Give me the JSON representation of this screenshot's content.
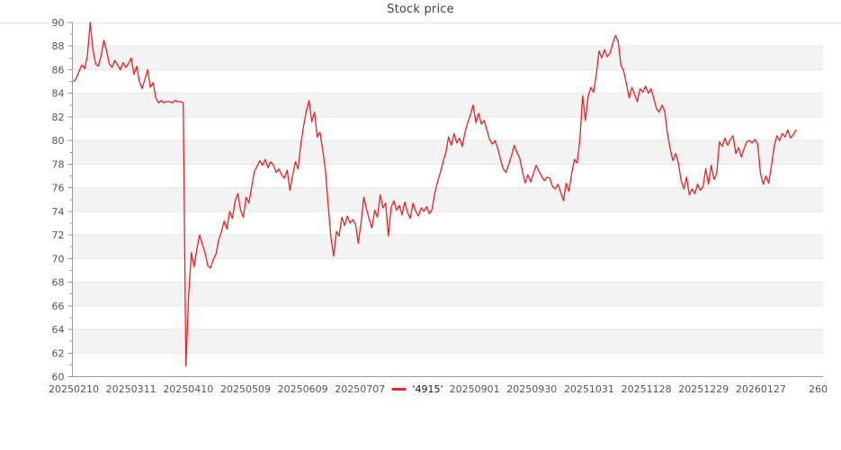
{
  "title": "Stock price",
  "legend": {
    "label": "'4915'",
    "slot_index": 6,
    "color": "#ed2024"
  },
  "colors": {
    "line": "#ed2024",
    "band_gray": "#f3f3f3",
    "band_edge": "#e7e7e7",
    "axis": "#999999",
    "tick_label": "#565656",
    "title_text": "#424242",
    "top_rule": "#e5e5e5",
    "background": "#ffffff"
  },
  "chart_data": {
    "type": "line",
    "title": "Stock price",
    "xlabel": "",
    "ylabel": "",
    "ylim": [
      60,
      90
    ],
    "y_tick_step": 2,
    "y_minor_tick_step": 1,
    "y_tick_labels": [
      "60",
      "62",
      "64",
      "66",
      "68",
      "70",
      "72",
      "74",
      "76",
      "78",
      "80",
      "82",
      "84",
      "86",
      "88",
      "90"
    ],
    "x_ticks": [
      "20250210",
      "20250311",
      "20250410",
      "20250509",
      "20250609",
      "20250707",
      "20250901",
      "20250930",
      "20251031",
      "20251128",
      "20251229",
      "20260127",
      "260"
    ],
    "grid": "alternating horizontal gray bands every 2 units (62-64, 66-68, 70-72, 74-76, 78-80, 82-84, 86-88)",
    "legend_position": "bottom-center, inline with x tick labels",
    "series": [
      {
        "name": "'4915'",
        "color": "#ed2024",
        "values": [
          85.0,
          85.3,
          85.9,
          86.4,
          86.1,
          87.2,
          90.0,
          87.7,
          86.5,
          86.3,
          87.2,
          88.5,
          87.6,
          86.5,
          86.2,
          86.8,
          86.4,
          86.0,
          86.6,
          86.2,
          86.5,
          87.0,
          85.6,
          86.3,
          85.0,
          84.4,
          85.2,
          86.0,
          84.5,
          84.9,
          83.6,
          83.2,
          83.4,
          83.2,
          83.3,
          83.3,
          83.2,
          83.4,
          83.3,
          83.3,
          83.2,
          60.9,
          67.0,
          70.5,
          69.3,
          70.8,
          72.0,
          71.2,
          70.5,
          69.4,
          69.2,
          69.9,
          70.4,
          71.6,
          72.3,
          73.2,
          72.5,
          74.0,
          73.4,
          74.9,
          75.5,
          74.1,
          73.5,
          75.2,
          74.7,
          76.0,
          77.4,
          77.8,
          78.3,
          77.9,
          78.4,
          77.7,
          78.2,
          77.9,
          77.3,
          77.6,
          77.1,
          76.8,
          77.5,
          75.8,
          77.0,
          78.2,
          77.6,
          79.7,
          81.2,
          82.5,
          83.4,
          81.6,
          82.4,
          80.3,
          80.7,
          79.2,
          77.5,
          74.5,
          71.8,
          70.2,
          72.3,
          71.9,
          73.5,
          72.8,
          73.6,
          73.0,
          73.3,
          72.9,
          71.3,
          73.0,
          75.2,
          74.2,
          73.3,
          72.6,
          74.1,
          73.5,
          75.4,
          74.3,
          74.7,
          71.9,
          74.3,
          74.9,
          74.1,
          74.5,
          73.7,
          74.8,
          73.9,
          73.4,
          74.7,
          74.0,
          73.6,
          74.3,
          74.0,
          74.4,
          73.8,
          74.2,
          75.6,
          76.5,
          77.3,
          78.2,
          79.0,
          80.3,
          79.6,
          80.6,
          79.8,
          80.2,
          79.5,
          80.7,
          81.5,
          82.2,
          83.0,
          81.5,
          82.3,
          81.4,
          81.7,
          80.9,
          80.1,
          79.7,
          80.0,
          79.3,
          78.4,
          77.6,
          77.3,
          78.0,
          78.7,
          79.6,
          79.0,
          78.5,
          77.4,
          76.4,
          77.1,
          76.5,
          77.2,
          77.9,
          77.4,
          77.0,
          76.6,
          76.9,
          76.8,
          76.1,
          75.9,
          76.3,
          75.6,
          74.9,
          76.4,
          75.7,
          77.2,
          78.4,
          78.1,
          80.1,
          83.8,
          81.7,
          83.7,
          84.5,
          84.1,
          85.6,
          87.6,
          87.0,
          87.7,
          87.1,
          87.4,
          88.2,
          88.9,
          88.4,
          86.4,
          85.9,
          84.8,
          83.6,
          84.5,
          83.9,
          83.3,
          84.4,
          84.1,
          84.6,
          84.0,
          84.4,
          83.6,
          82.7,
          82.4,
          83.0,
          82.5,
          80.6,
          79.3,
          78.3,
          78.9,
          78.1,
          76.6,
          75.9,
          76.9,
          75.4,
          75.9,
          75.5,
          76.3,
          75.8,
          76.1,
          77.6,
          76.3,
          77.9,
          76.7,
          77.2,
          79.9,
          79.5,
          80.2,
          79.6,
          80.1,
          80.4,
          78.9,
          79.4,
          78.6,
          79.3,
          79.9,
          80.0,
          79.8,
          80.1,
          79.7,
          77.2,
          76.3,
          77.0,
          76.4,
          77.8,
          79.5,
          80.4,
          80.0,
          80.6,
          80.3,
          80.9,
          80.2,
          80.5,
          80.9
        ]
      }
    ]
  }
}
